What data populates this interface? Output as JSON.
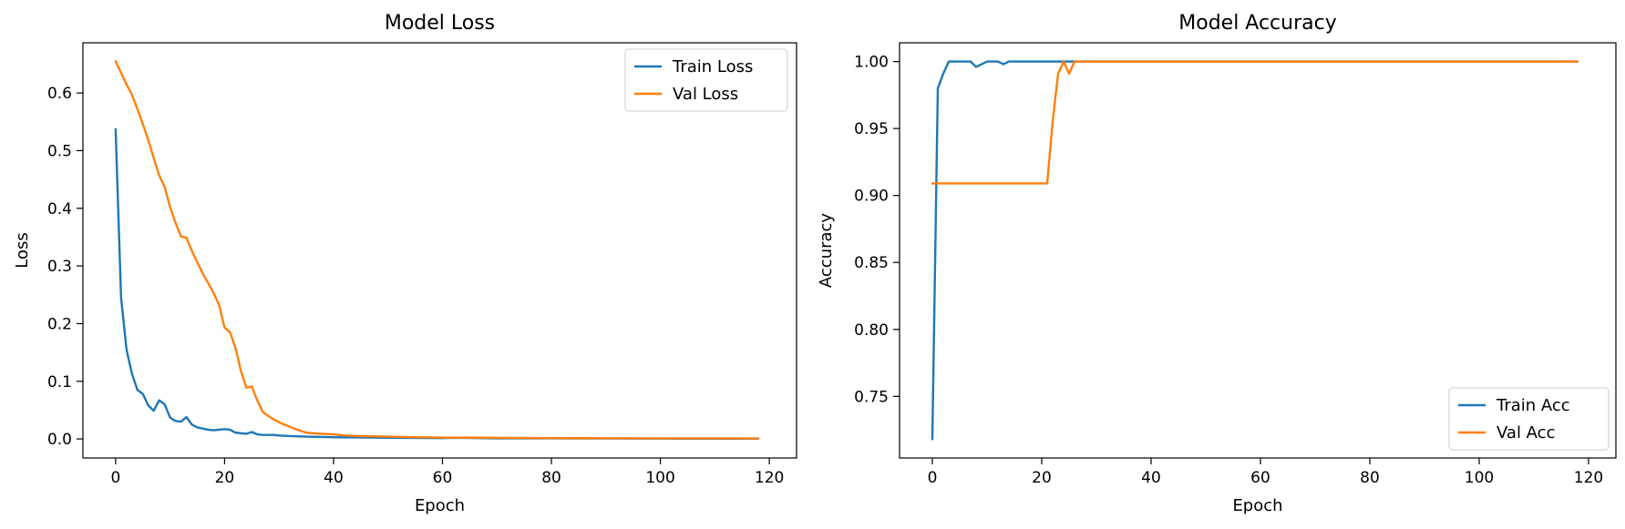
{
  "chart_data": [
    {
      "type": "line",
      "title": "Model Loss",
      "xlabel": "Epoch",
      "ylabel": "Loss",
      "xlim": [
        -6,
        125
      ],
      "ylim": [
        -0.033,
        0.687
      ],
      "xticks": [
        0,
        20,
        40,
        60,
        80,
        100,
        120
      ],
      "yticks": [
        0.0,
        0.1,
        0.2,
        0.3,
        0.4,
        0.5,
        0.6
      ],
      "ytick_decimals": 1,
      "grid": false,
      "legend": "upper right",
      "series": [
        {
          "name": "Train Loss",
          "color": "#1f77b4",
          "points": [
            [
              0,
              0.537
            ],
            [
              1,
              0.245
            ],
            [
              2,
              0.155
            ],
            [
              3,
              0.113
            ],
            [
              4,
              0.085
            ],
            [
              5,
              0.078
            ],
            [
              6,
              0.058
            ],
            [
              7,
              0.049
            ],
            [
              8,
              0.067
            ],
            [
              9,
              0.06
            ],
            [
              10,
              0.037
            ],
            [
              11,
              0.031
            ],
            [
              12,
              0.03
            ],
            [
              13,
              0.038
            ],
            [
              14,
              0.025
            ],
            [
              15,
              0.02
            ],
            [
              16,
              0.018
            ],
            [
              17,
              0.016
            ],
            [
              18,
              0.015
            ],
            [
              19,
              0.016
            ],
            [
              20,
              0.017
            ],
            [
              21,
              0.016
            ],
            [
              22,
              0.011
            ],
            [
              23,
              0.01
            ],
            [
              24,
              0.009
            ],
            [
              25,
              0.012
            ],
            [
              26,
              0.008
            ],
            [
              27,
              0.007
            ],
            [
              28,
              0.007
            ],
            [
              29,
              0.007
            ],
            [
              30,
              0.006
            ],
            [
              32,
              0.005
            ],
            [
              35,
              0.004
            ],
            [
              40,
              0.003
            ],
            [
              50,
              0.002
            ],
            [
              60,
              0.0015
            ],
            [
              62,
              0.002
            ],
            [
              70,
              0.001
            ],
            [
              80,
              0.001
            ],
            [
              90,
              0.0008
            ],
            [
              100,
              0.0006
            ],
            [
              110,
              0.0005
            ],
            [
              118,
              0.0005
            ]
          ]
        },
        {
          "name": "Val Loss",
          "color": "#ff7f0e",
          "points": [
            [
              0,
              0.655
            ],
            [
              1,
              0.635
            ],
            [
              2,
              0.615
            ],
            [
              3,
              0.597
            ],
            [
              4,
              0.572
            ],
            [
              5,
              0.546
            ],
            [
              6,
              0.518
            ],
            [
              7,
              0.487
            ],
            [
              8,
              0.457
            ],
            [
              9,
              0.437
            ],
            [
              10,
              0.402
            ],
            [
              11,
              0.375
            ],
            [
              12,
              0.351
            ],
            [
              13,
              0.349
            ],
            [
              14,
              0.326
            ],
            [
              15,
              0.306
            ],
            [
              16,
              0.287
            ],
            [
              17,
              0.27
            ],
            [
              18,
              0.253
            ],
            [
              19,
              0.232
            ],
            [
              20,
              0.193
            ],
            [
              21,
              0.185
            ],
            [
              22,
              0.158
            ],
            [
              23,
              0.118
            ],
            [
              24,
              0.089
            ],
            [
              25,
              0.091
            ],
            [
              26,
              0.067
            ],
            [
              27,
              0.047
            ],
            [
              28,
              0.04
            ],
            [
              29,
              0.034
            ],
            [
              30,
              0.029
            ],
            [
              31,
              0.025
            ],
            [
              32,
              0.021
            ],
            [
              33,
              0.017
            ],
            [
              34,
              0.014
            ],
            [
              35,
              0.011
            ],
            [
              36,
              0.01
            ],
            [
              38,
              0.009
            ],
            [
              40,
              0.008
            ],
            [
              42,
              0.006
            ],
            [
              45,
              0.005
            ],
            [
              50,
              0.004
            ],
            [
              55,
              0.003
            ],
            [
              60,
              0.0025
            ],
            [
              70,
              0.002
            ],
            [
              80,
              0.0015
            ],
            [
              90,
              0.0012
            ],
            [
              100,
              0.001
            ],
            [
              110,
              0.001
            ],
            [
              118,
              0.0009
            ]
          ]
        }
      ]
    },
    {
      "type": "line",
      "title": "Model Accuracy",
      "xlabel": "Epoch",
      "ylabel": "Accuracy",
      "xlim": [
        -6,
        125
      ],
      "ylim": [
        0.704,
        1.014
      ],
      "xticks": [
        0,
        20,
        40,
        60,
        80,
        100,
        120
      ],
      "yticks": [
        0.75,
        0.8,
        0.85,
        0.9,
        0.95,
        1.0
      ],
      "ytick_decimals": 2,
      "grid": false,
      "legend": "lower right",
      "series": [
        {
          "name": "Train Acc",
          "color": "#1f77b4",
          "points": [
            [
              0,
              0.718
            ],
            [
              1,
              0.98
            ],
            [
              2,
              0.991
            ],
            [
              3,
              1.0
            ],
            [
              4,
              1.0
            ],
            [
              5,
              1.0
            ],
            [
              6,
              1.0
            ],
            [
              7,
              1.0
            ],
            [
              8,
              0.996
            ],
            [
              9,
              0.998
            ],
            [
              10,
              1.0
            ],
            [
              11,
              1.0
            ],
            [
              12,
              1.0
            ],
            [
              13,
              0.998
            ],
            [
              14,
              1.0
            ],
            [
              15,
              1.0
            ],
            [
              20,
              1.0
            ],
            [
              30,
              1.0
            ],
            [
              50,
              1.0
            ],
            [
              80,
              1.0
            ],
            [
              100,
              1.0
            ],
            [
              118,
              1.0
            ]
          ]
        },
        {
          "name": "Val Acc",
          "color": "#ff7f0e",
          "points": [
            [
              0,
              0.909
            ],
            [
              5,
              0.909
            ],
            [
              10,
              0.909
            ],
            [
              15,
              0.909
            ],
            [
              20,
              0.909
            ],
            [
              21,
              0.909
            ],
            [
              22,
              0.955
            ],
            [
              23,
              0.991
            ],
            [
              24,
              1.0
            ],
            [
              25,
              0.991
            ],
            [
              26,
              1.0
            ],
            [
              30,
              1.0
            ],
            [
              50,
              1.0
            ],
            [
              80,
              1.0
            ],
            [
              100,
              1.0
            ],
            [
              118,
              1.0
            ]
          ]
        }
      ]
    }
  ]
}
